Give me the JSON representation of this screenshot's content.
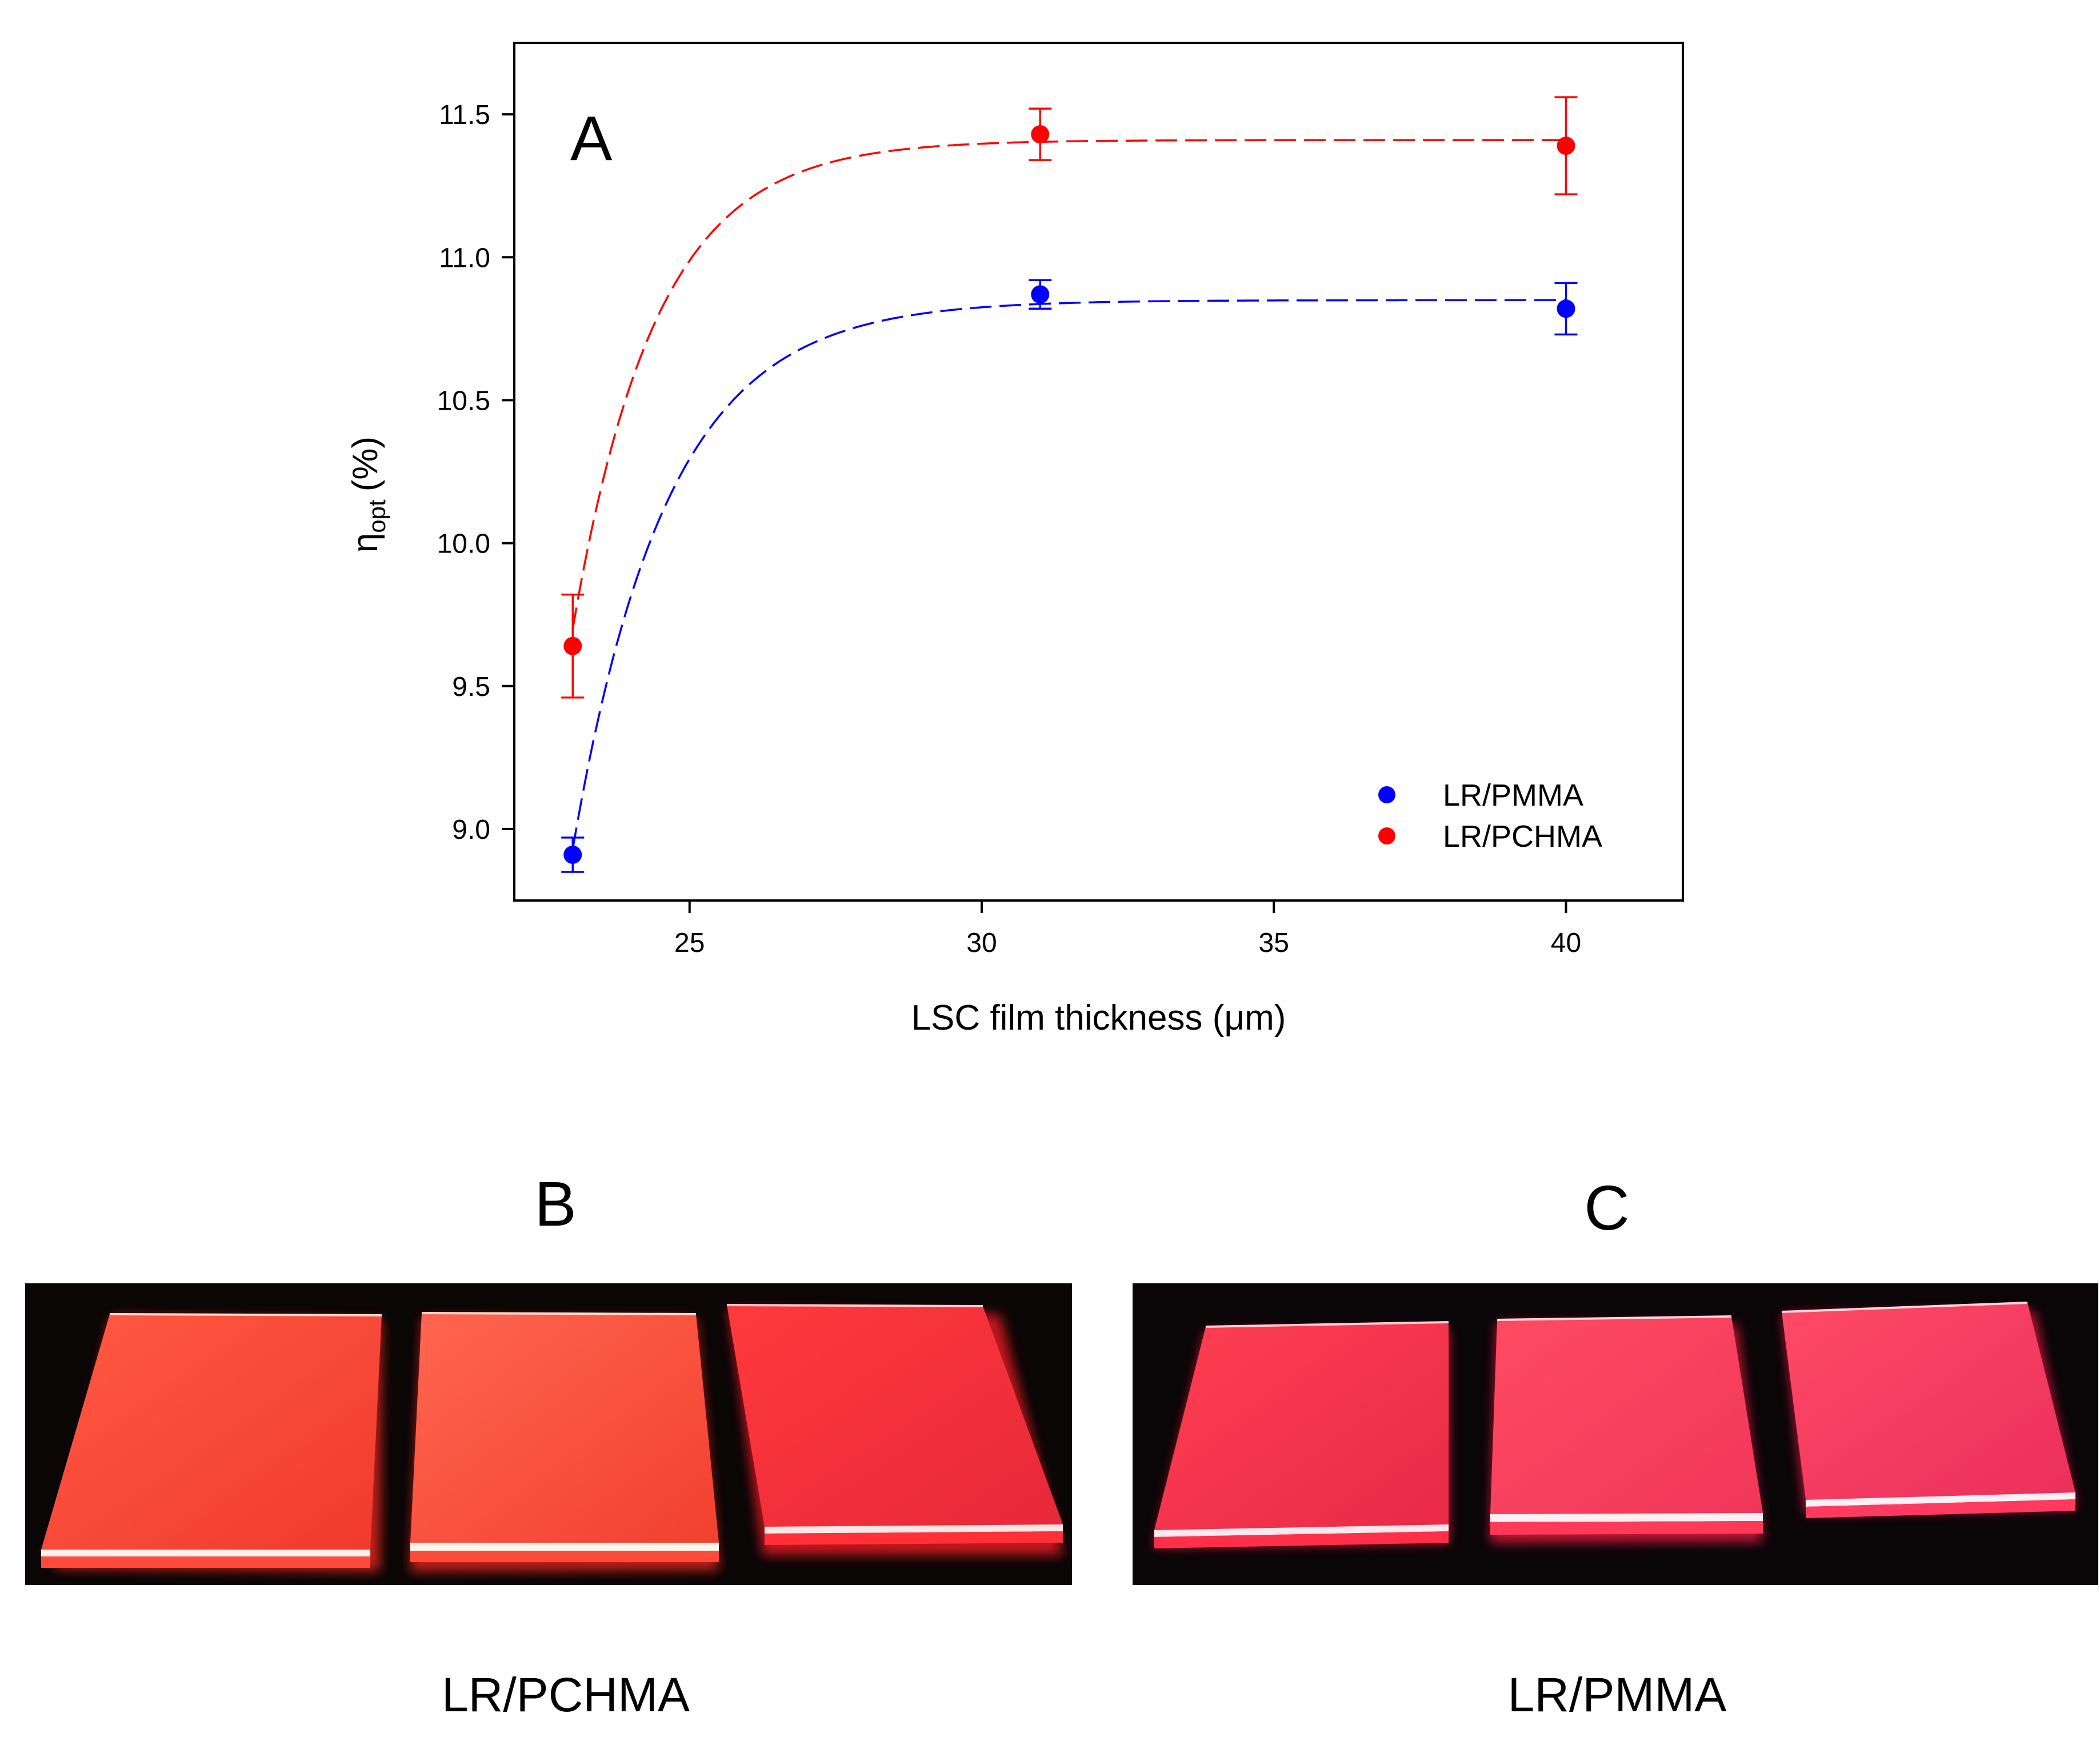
{
  "chart_data": {
    "type": "scatter",
    "panel_label": "A",
    "xlabel": "LSC film thickness (μm)",
    "ylabel_main": "η",
    "ylabel_sub": "opt",
    "ylabel_unit": "(%)",
    "xlim": [
      22,
      42
    ],
    "ylim": [
      8.75,
      11.75
    ],
    "xticks": [
      25,
      30,
      35,
      40
    ],
    "yticks": [
      9.0,
      9.5,
      10.0,
      10.5,
      11.0,
      11.5
    ],
    "ytick_labels": [
      "9.0",
      "9.5",
      "10.0",
      "10.5",
      "11.0",
      "11.5"
    ],
    "grid": false,
    "legend_position": "lower-right",
    "series": [
      {
        "name": "LR/PMMA",
        "color": "#0000ff",
        "marker": "circle",
        "x": [
          23,
          31,
          40
        ],
        "y": [
          8.91,
          10.87,
          10.82
        ],
        "yerr": [
          0.06,
          0.05,
          0.09
        ],
        "fit": {
          "style": "dashed",
          "plateau": 10.85,
          "start_x": 23,
          "start_y": 8.93,
          "rate": 0.62
        }
      },
      {
        "name": "LR/PCHMA",
        "color": "#ff0000",
        "marker": "circle",
        "x": [
          23,
          31,
          40
        ],
        "y": [
          9.64,
          11.43,
          11.39
        ],
        "yerr": [
          0.18,
          0.09,
          0.17
        ],
        "fit": {
          "style": "dashed",
          "plateau": 11.41,
          "start_x": 23,
          "start_y": 9.7,
          "rate": 0.7
        }
      }
    ]
  },
  "panels": {
    "b": {
      "letter": "B",
      "caption": "LR/PCHMA"
    },
    "c": {
      "letter": "C",
      "caption": "LR/PMMA"
    }
  }
}
